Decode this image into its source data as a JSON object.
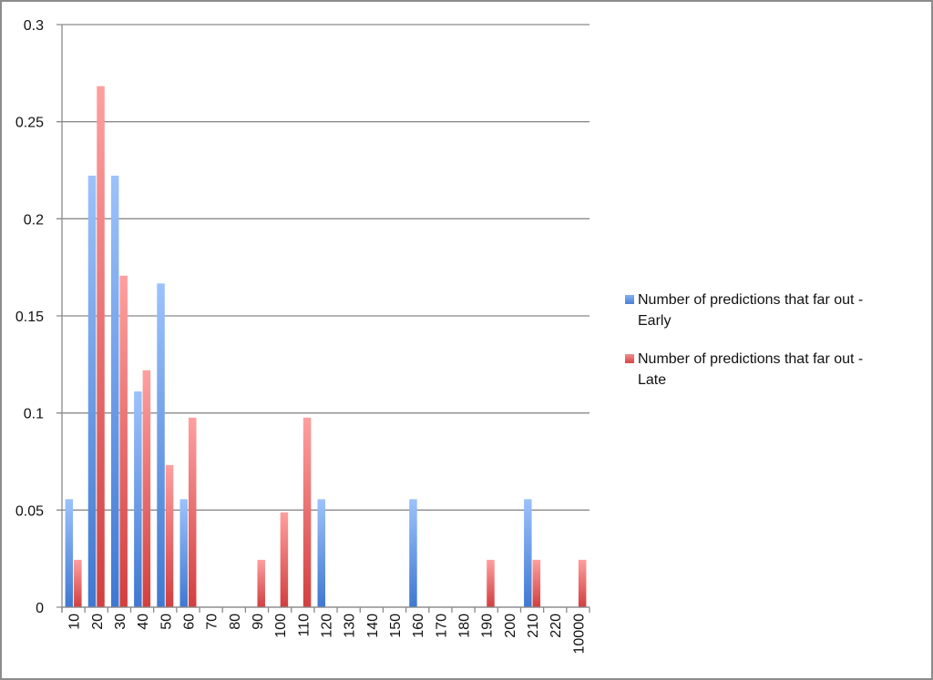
{
  "chart_data": {
    "type": "bar",
    "title": "",
    "xlabel": "",
    "ylabel": "",
    "ylim": [
      0,
      0.3
    ],
    "yticks": [
      "0",
      "0.05",
      "0.1",
      "0.15",
      "0.2",
      "0.25",
      "0.3"
    ],
    "ytick_values": [
      0,
      0.05,
      0.1,
      0.15,
      0.2,
      0.25,
      0.3
    ],
    "grid": true,
    "legend_position": "right",
    "categories": [
      "10",
      "20",
      "30",
      "40",
      "50",
      "60",
      "70",
      "80",
      "90",
      "100",
      "110",
      "120",
      "130",
      "140",
      "150",
      "160",
      "170",
      "180",
      "190",
      "200",
      "210",
      "220",
      "10000"
    ],
    "series": [
      {
        "name": "Number of predictions that far out - Early",
        "color": "#4a7fd6",
        "values": [
          0.0556,
          0.2222,
          0.2222,
          0.1111,
          0.1667,
          0.0556,
          0,
          0,
          0,
          0,
          0,
          0.0556,
          0,
          0,
          0,
          0.0556,
          0,
          0,
          0,
          0,
          0.0556,
          0,
          0
        ]
      },
      {
        "name": "Number of predictions that far out - Late",
        "color": "#d64545",
        "values": [
          0.0244,
          0.2683,
          0.1707,
          0.122,
          0.0732,
          0.0976,
          0,
          0,
          0.0244,
          0.0488,
          0.0976,
          0,
          0,
          0,
          0,
          0,
          0,
          0,
          0.0244,
          0,
          0.0244,
          0,
          0.0244
        ]
      }
    ]
  },
  "legend": {
    "items": [
      {
        "label_line1": "Number of predictions that far out -",
        "label_line2": "Early",
        "color": "#4a7fd6"
      },
      {
        "label_line1": "Number of predictions that far out -",
        "label_line2": "Late",
        "color": "#d64545"
      }
    ]
  }
}
